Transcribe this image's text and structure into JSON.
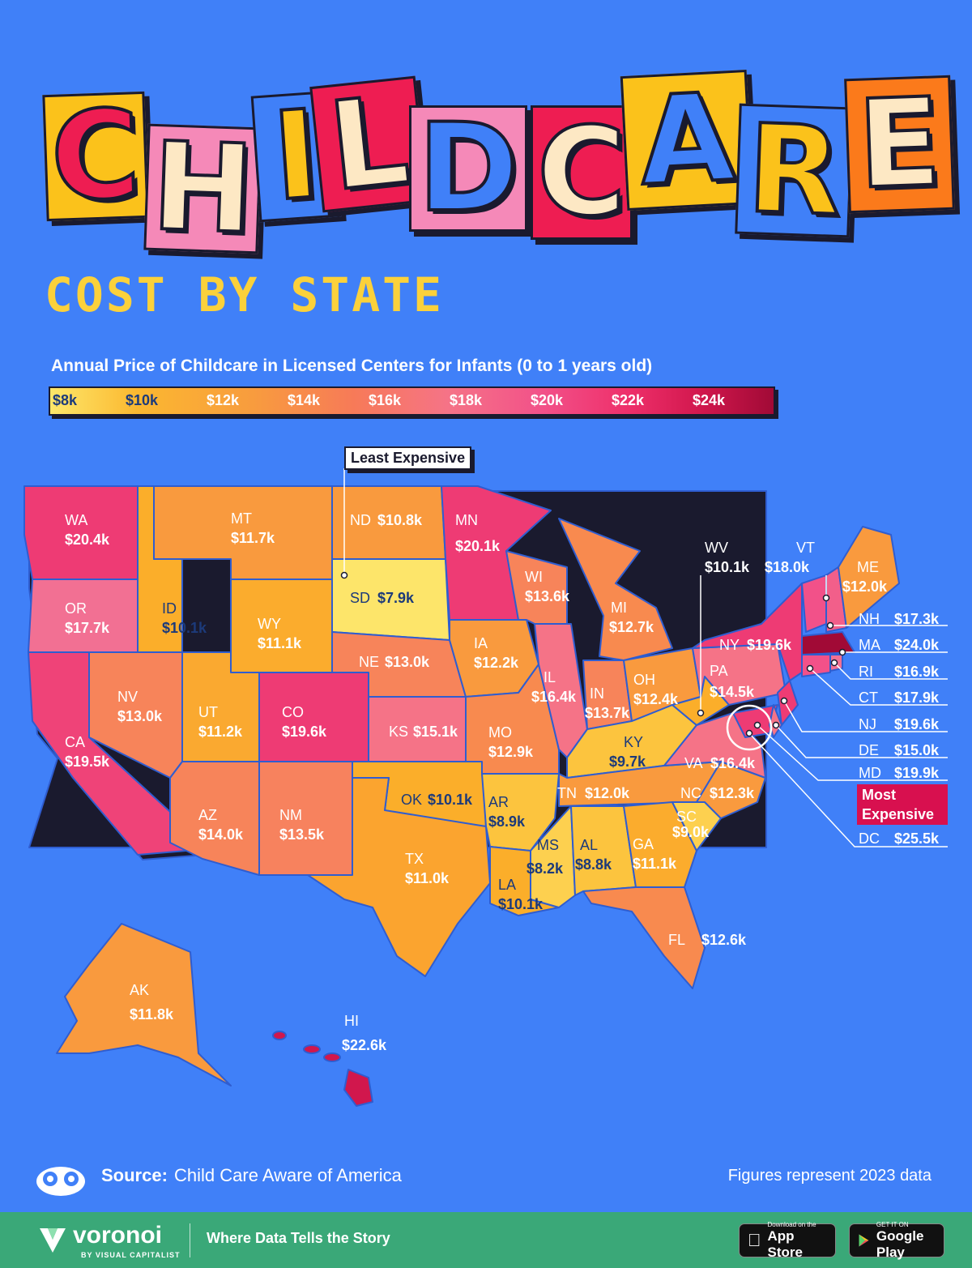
{
  "title": {
    "letters": [
      "C",
      "H",
      "I",
      "L",
      "D",
      "C",
      "A",
      "R",
      "E"
    ]
  },
  "subtitle": "COST BY STATE",
  "legend": {
    "title": "Annual Price of Childcare in Licensed Centers for Infants  (0 to 1 years old)",
    "ticks": [
      "$8k",
      "$10k",
      "$12k",
      "$14k",
      "$16k",
      "$18k",
      "$20k",
      "$22k",
      "$24k"
    ]
  },
  "annotations": {
    "least": "Least Expensive",
    "most_line1": "Most",
    "most_line2": "Expensive"
  },
  "states": {
    "WA": "$20.4k",
    "OR": "$17.7k",
    "CA": "$19.5k",
    "ID": "$10.1k",
    "NV": "$13.0k",
    "MT": "$11.7k",
    "WY": "$11.1k",
    "UT": "$11.2k",
    "AZ": "$14.0k",
    "CO": "$19.6k",
    "NM": "$13.5k",
    "ND": "$10.8k",
    "SD": "$7.9k",
    "NE": "$13.0k",
    "KS": "$15.1k",
    "OK": "$10.1k",
    "TX": "$11.0k",
    "MN": "$20.1k",
    "IA": "$12.2k",
    "MO": "$12.9k",
    "AR": "$8.9k",
    "LA": "$10.1k",
    "WI": "$13.6k",
    "IL": "$16.4k",
    "MS": "$8.2k",
    "MI": "$12.7k",
    "IN": "$13.7k",
    "KY": "$9.7k",
    "TN": "$12.0k",
    "AL": "$8.8k",
    "OH": "$12.4k",
    "GA": "$11.1k",
    "FL": "$12.6k",
    "SC": "$9.0k",
    "NC": "$12.3k",
    "VA": "$16.4k",
    "WV": "$10.1k",
    "PA": "$14.5k",
    "NY": "$19.6k",
    "VT": "$18.0k",
    "ME": "$12.0k",
    "NH": "$17.3k",
    "MA": "$24.0k",
    "RI": "$16.9k",
    "CT": "$17.9k",
    "NJ": "$19.6k",
    "DE": "$15.0k",
    "MD": "$19.9k",
    "DC": "$25.5k",
    "AK": "$11.8k",
    "HI": "$22.6k"
  },
  "source_label": "Source:",
  "source_text": "Child Care Aware of America",
  "figures_note": "Figures represent 2023 data",
  "footer": {
    "brand": "voronoi",
    "brand_sub": "BY VISUAL CAPITALIST",
    "tagline": "Where Data Tells the Story",
    "appstore_small": "Download on the",
    "appstore_big": "App Store",
    "gplay_small": "GET IT ON",
    "gplay_big": "Google Play"
  },
  "colors": {
    "background": "#4080f8",
    "low": "#fde76a",
    "high": "#a10a36",
    "footer": "#3aa878"
  }
}
